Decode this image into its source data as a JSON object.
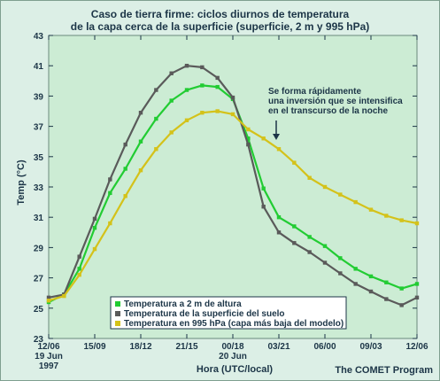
{
  "title_line1": "Caso de tierra firme: ciclos diurnos de temperatura",
  "title_line2": "de la capa cerca de la superficie (superficie, 2 m y 995 hPa)",
  "credit": "The COMET Program",
  "annotation": [
    "Se forma rápidamente",
    "una inversión que se intensifica",
    "en el transcurso de la noche"
  ],
  "chart_data": {
    "type": "line",
    "xlabel": "Hora (UTC/local)",
    "ylabel": "Temp (°C)",
    "ylim": [
      23,
      43
    ],
    "yticks": [
      23,
      25,
      27,
      29,
      31,
      33,
      35,
      37,
      39,
      41,
      43
    ],
    "xlim": [
      0,
      24
    ],
    "xticks": [
      {
        "x": 0,
        "lines": [
          "12/06",
          "19 Jun",
          "1997"
        ]
      },
      {
        "x": 3,
        "lines": [
          "15/09"
        ]
      },
      {
        "x": 6,
        "lines": [
          "18/12"
        ]
      },
      {
        "x": 9,
        "lines": [
          "21/15"
        ]
      },
      {
        "x": 12,
        "lines": [
          "00/18",
          "20 Jun"
        ]
      },
      {
        "x": 15,
        "lines": [
          "03/21"
        ]
      },
      {
        "x": 18,
        "lines": [
          "06/00"
        ]
      },
      {
        "x": 21,
        "lines": [
          "09/03"
        ]
      },
      {
        "x": 24,
        "lines": [
          "12/06"
        ]
      }
    ],
    "grid": false,
    "legend_position": "bottom-left",
    "series": [
      {
        "name": "Temperatura a 2 m de altura",
        "color": "#22cc33",
        "x": [
          0,
          1,
          2,
          3,
          4,
          5,
          6,
          7,
          8,
          9,
          10,
          11,
          12,
          13,
          14,
          15,
          16,
          17,
          18,
          19,
          20,
          21,
          22,
          23,
          24
        ],
        "y": [
          25.4,
          25.9,
          27.6,
          30.3,
          32.6,
          34.2,
          36.0,
          37.5,
          38.7,
          39.4,
          39.7,
          39.6,
          38.8,
          36.2,
          32.9,
          31.0,
          30.4,
          29.7,
          29.1,
          28.3,
          27.6,
          27.1,
          26.7,
          26.3,
          26.6
        ]
      },
      {
        "name": "Temperatura de la superficie del suelo",
        "color": "#5a5a5a",
        "x": [
          0,
          1,
          2,
          3,
          4,
          5,
          6,
          7,
          8,
          9,
          10,
          11,
          12,
          13,
          14,
          15,
          16,
          17,
          18,
          19,
          20,
          21,
          22,
          23,
          24
        ],
        "y": [
          25.7,
          25.9,
          28.4,
          30.9,
          33.5,
          35.8,
          37.9,
          39.4,
          40.5,
          41.0,
          40.9,
          40.2,
          38.9,
          35.8,
          31.7,
          30.0,
          29.3,
          28.7,
          28.0,
          27.3,
          26.6,
          26.1,
          25.6,
          25.2,
          25.7
        ]
      },
      {
        "name": "Temperatura en 995 hPa (capa más baja del modelo)",
        "color": "#d4c21a",
        "x": [
          0,
          1,
          2,
          3,
          4,
          5,
          6,
          7,
          8,
          9,
          10,
          11,
          12,
          13,
          14,
          15,
          16,
          17,
          18,
          19,
          20,
          21,
          22,
          23,
          24
        ],
        "y": [
          25.5,
          25.8,
          27.2,
          28.9,
          30.6,
          32.4,
          34.1,
          35.5,
          36.6,
          37.4,
          37.9,
          38.0,
          37.8,
          36.8,
          36.2,
          35.5,
          34.6,
          33.6,
          33.0,
          32.5,
          32.0,
          31.5,
          31.1,
          30.8,
          30.6
        ]
      }
    ]
  }
}
